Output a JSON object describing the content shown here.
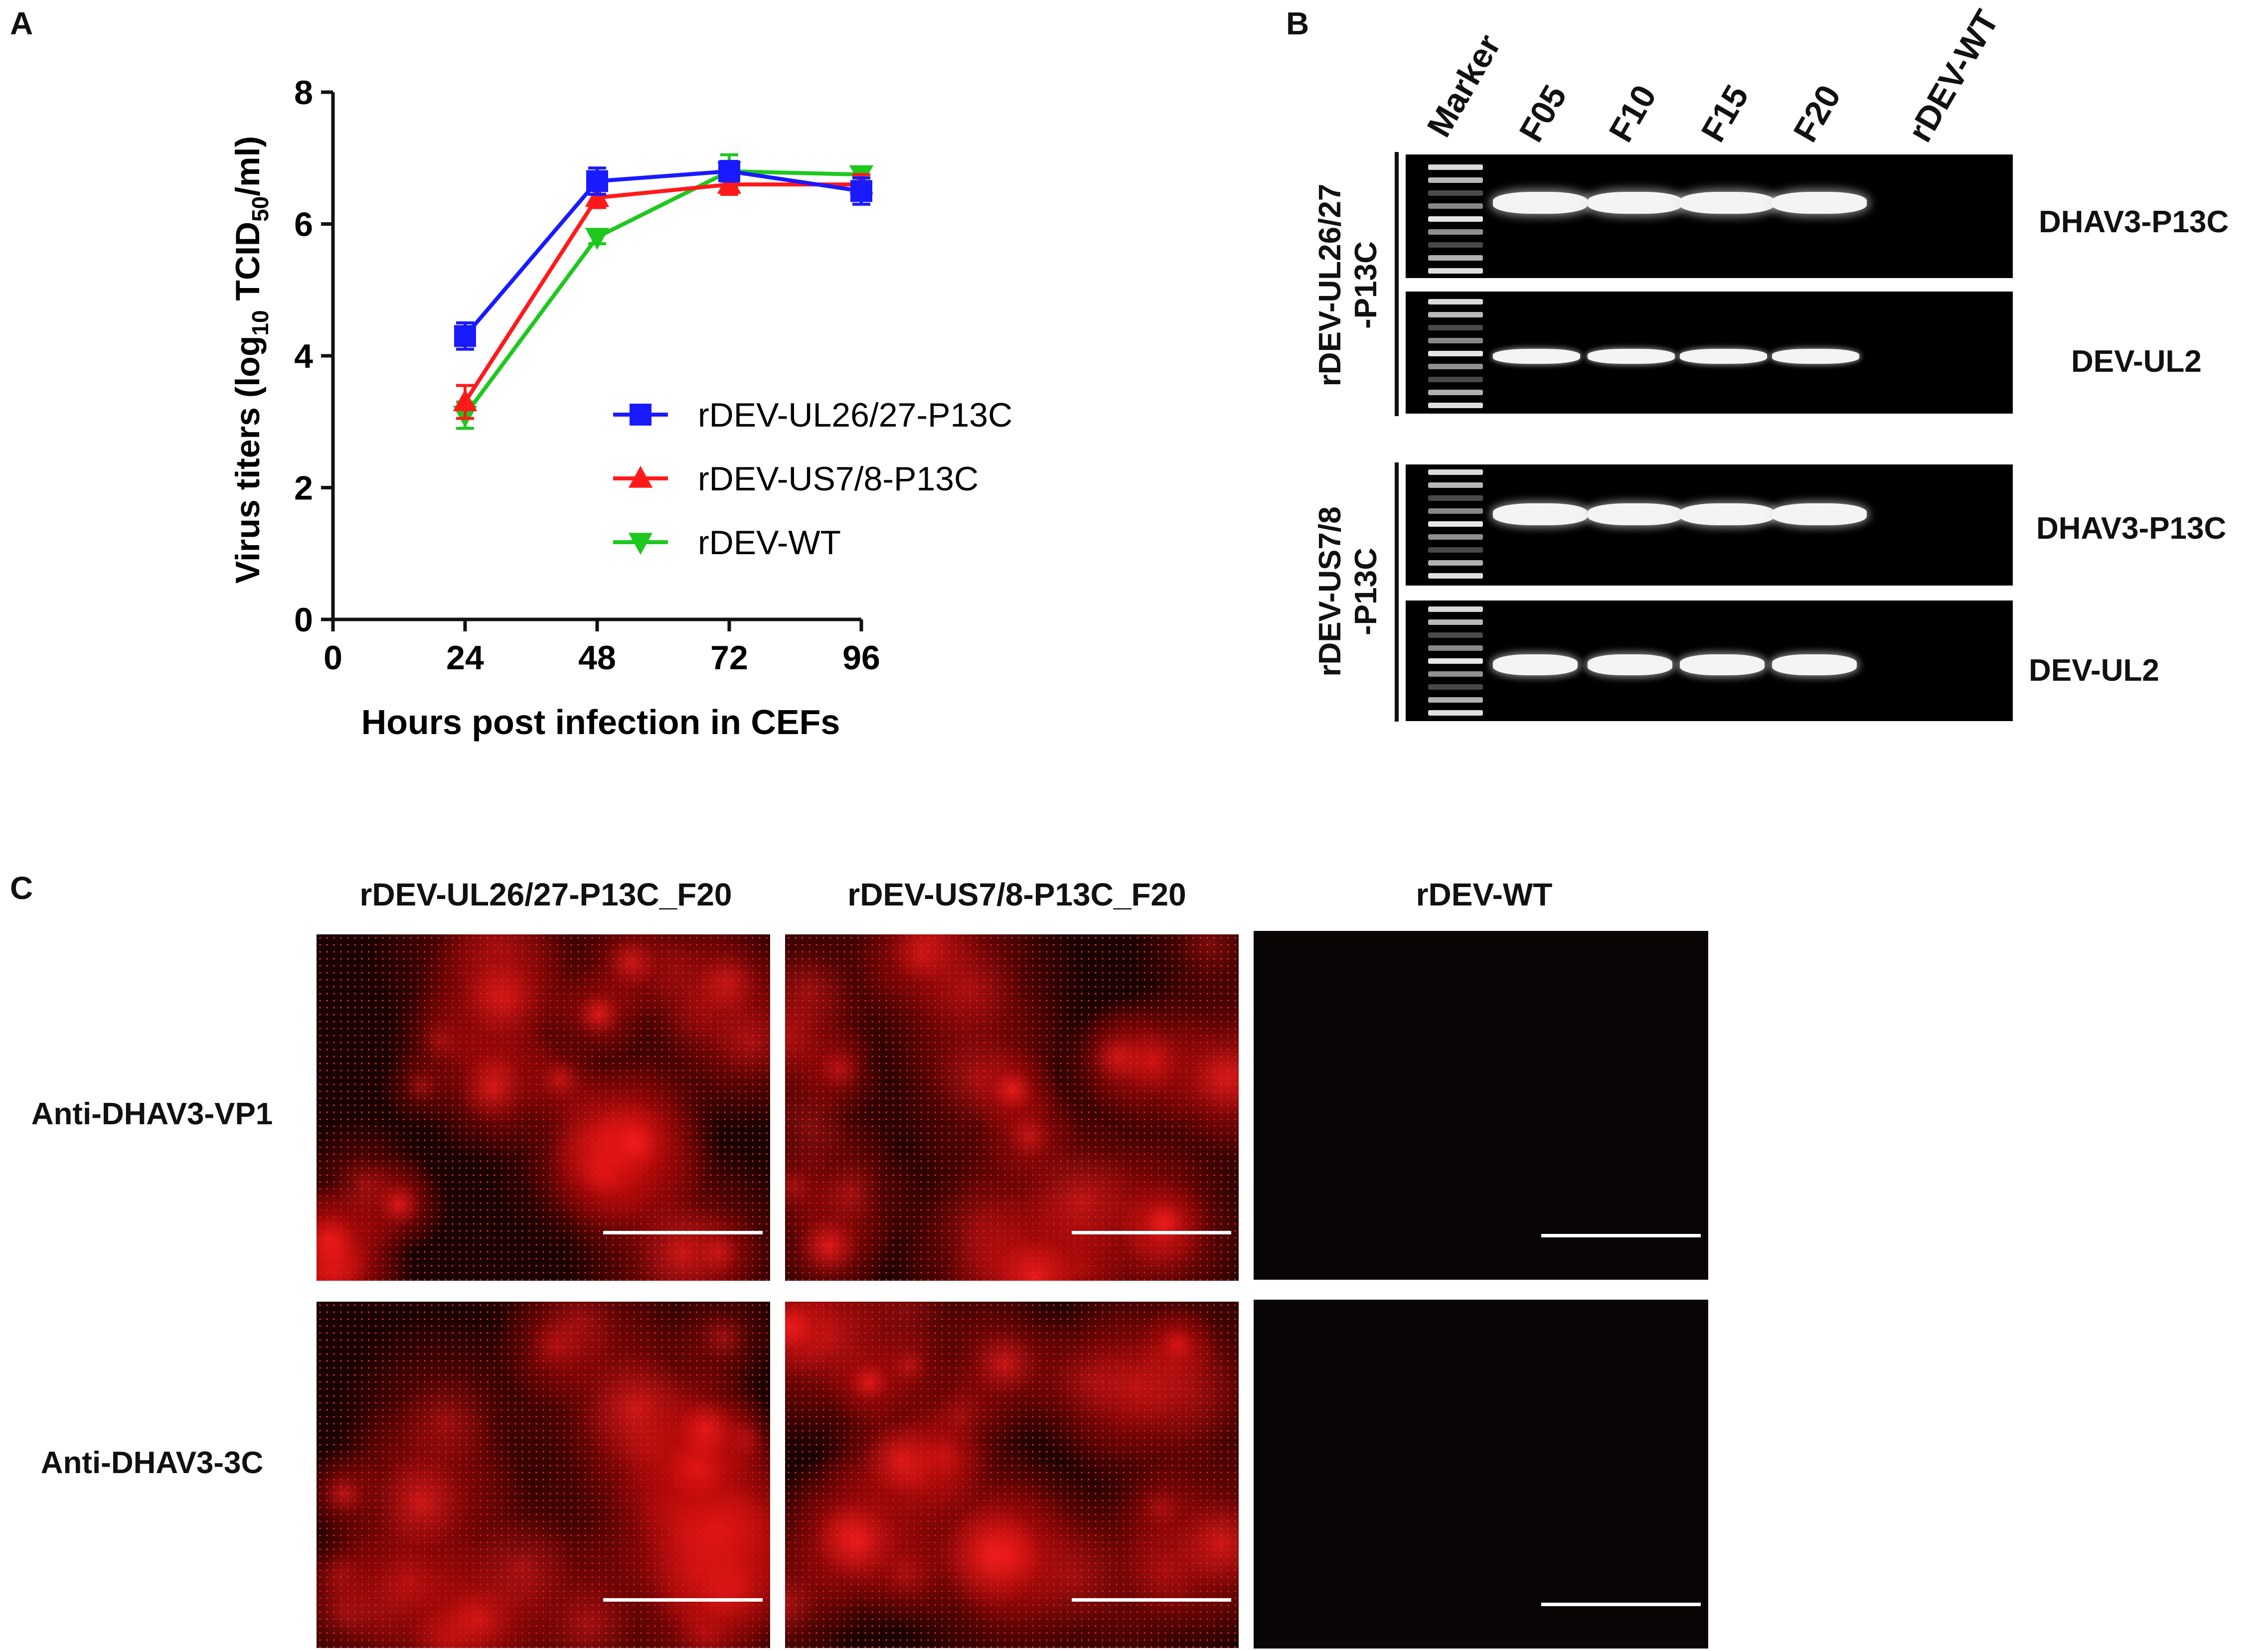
{
  "panels": {
    "a": "A",
    "b": "B",
    "c": "C"
  },
  "chart_data": {
    "type": "line",
    "x": [
      24,
      48,
      72,
      96
    ],
    "xlabel": "Hours post infection in CEFs",
    "ylabel_main": "Virus titers (log",
    "ylabel_sub1": "10",
    "ylabel_mid": " TCID",
    "ylabel_sub2": "50",
    "ylabel_end": "/ml)",
    "xlim": [
      0,
      96
    ],
    "ylim": [
      0,
      8
    ],
    "xticks": [
      "0",
      "24",
      "48",
      "72",
      "96"
    ],
    "yticks": [
      "0",
      "2",
      "4",
      "6",
      "8"
    ],
    "series": [
      {
        "name": "rDEV-UL26/27-P13C",
        "color": "#1a1aff",
        "marker": "square",
        "values": [
          4.3,
          6.65,
          6.8,
          6.5
        ],
        "err": [
          0.2,
          0.2,
          0.15,
          0.2
        ]
      },
      {
        "name": "rDEV-US7/8-P13C",
        "color": "#ff1a1a",
        "marker": "triangle-up",
        "values": [
          3.3,
          6.4,
          6.6,
          6.6
        ],
        "err": [
          0.25,
          0.15,
          0.15,
          0.15
        ]
      },
      {
        "name": "rDEV-WT",
        "color": "#1ec81e",
        "marker": "triangle-down",
        "values": [
          3.1,
          5.8,
          6.8,
          6.75
        ],
        "err": [
          0.2,
          0.1,
          0.25,
          0.1
        ]
      }
    ],
    "legend_position": "center-right",
    "grid": false
  },
  "gel": {
    "lanes": [
      "Marker",
      "F05",
      "F10",
      "F15",
      "F20",
      "rDEV-WT"
    ],
    "group1_label_line1": "rDEV-UL26/27",
    "group1_label_line2": "-P13C",
    "group2_label_line1": "rDEV-US7/8",
    "group2_label_line2": "-P13C",
    "band_labels": [
      "DHAV3-P13C",
      "DEV-UL2",
      "DHAV3-P13C",
      "DEV-UL2"
    ]
  },
  "microscopy": {
    "columns": [
      "rDEV-UL26/27-P13C_F20",
      "rDEV-US7/8-P13C_F20",
      "rDEV-WT"
    ],
    "rows": [
      "Anti-DHAV3-VP1",
      "Anti-DHAV3-3C"
    ],
    "signal_color": "#ff1a1a"
  }
}
